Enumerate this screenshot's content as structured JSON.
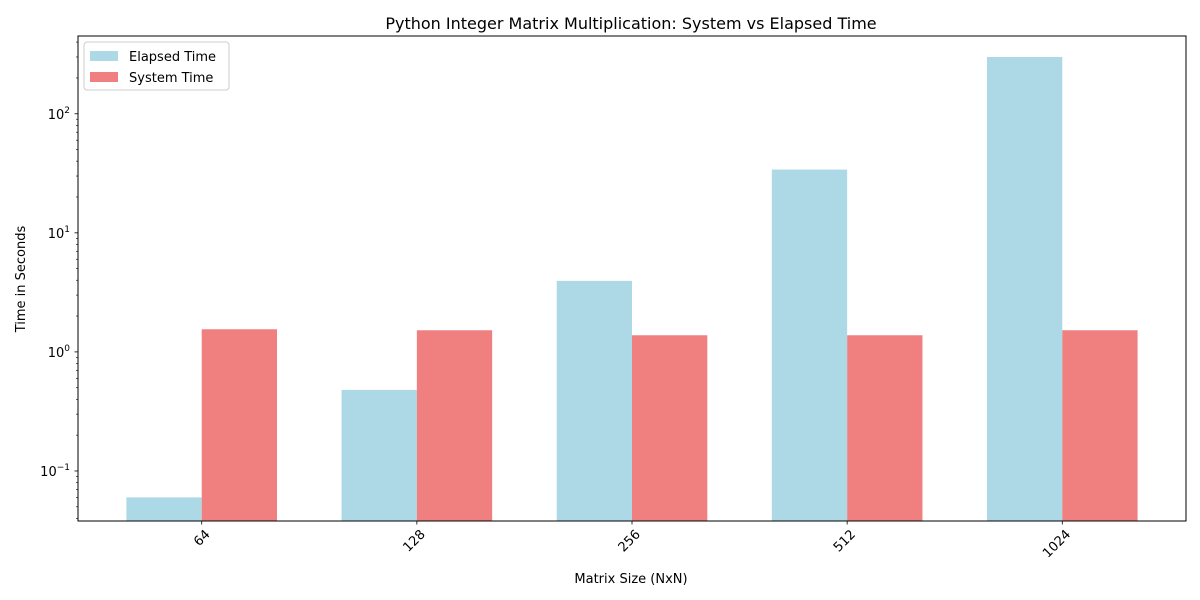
{
  "chart_data": {
    "type": "bar",
    "title": "Python Integer Matrix Multiplication: System vs Elapsed Time",
    "xlabel": "Matrix Size (NxN)",
    "ylabel": "Time in Seconds",
    "yscale": "log",
    "ylim": [
      0.038,
      450
    ],
    "categories": [
      "64",
      "128",
      "256",
      "512",
      "1024"
    ],
    "series": [
      {
        "name": "Elapsed Time",
        "color": "#add8e6",
        "values": [
          0.06,
          0.48,
          3.95,
          34.0,
          300.0
        ]
      },
      {
        "name": "System Time",
        "color": "#f08080",
        "values": [
          1.55,
          1.52,
          1.38,
          1.38,
          1.52
        ]
      }
    ],
    "y_ticks": [
      {
        "value": 0.1,
        "base": "10",
        "exp": "−1"
      },
      {
        "value": 1,
        "base": "10",
        "exp": "0"
      },
      {
        "value": 10,
        "base": "10",
        "exp": "1"
      },
      {
        "value": 100,
        "base": "10",
        "exp": "2"
      }
    ],
    "legend_position": "top-left",
    "grid": false,
    "x_tick_rotation": 45
  }
}
